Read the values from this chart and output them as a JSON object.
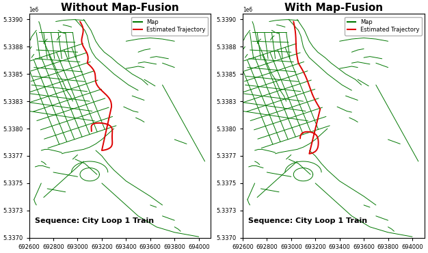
{
  "title_left": "Without Map-Fusion",
  "title_right": "With Map-Fusion",
  "sequence_label": "Sequence: City Loop 1 Train",
  "legend_map": "Map",
  "legend_traj": "Estimated Trajectory",
  "map_color": "#007700",
  "traj_color": "#dd0000",
  "background": "#ffffff",
  "title_fontsize": 11,
  "tick_fontsize": 6,
  "annot_fontsize": 8,
  "legend_fontsize": 6,
  "xlim": [
    692600,
    694100
  ],
  "ylim": [
    5337000,
    5339050
  ],
  "xticks": [
    692600,
    692800,
    693000,
    693200,
    693400,
    693600,
    693800,
    694000
  ],
  "yticks": [
    5337000,
    5337250,
    5337500,
    5337750,
    5338000,
    5338250,
    5338500,
    5338750,
    5339000
  ]
}
